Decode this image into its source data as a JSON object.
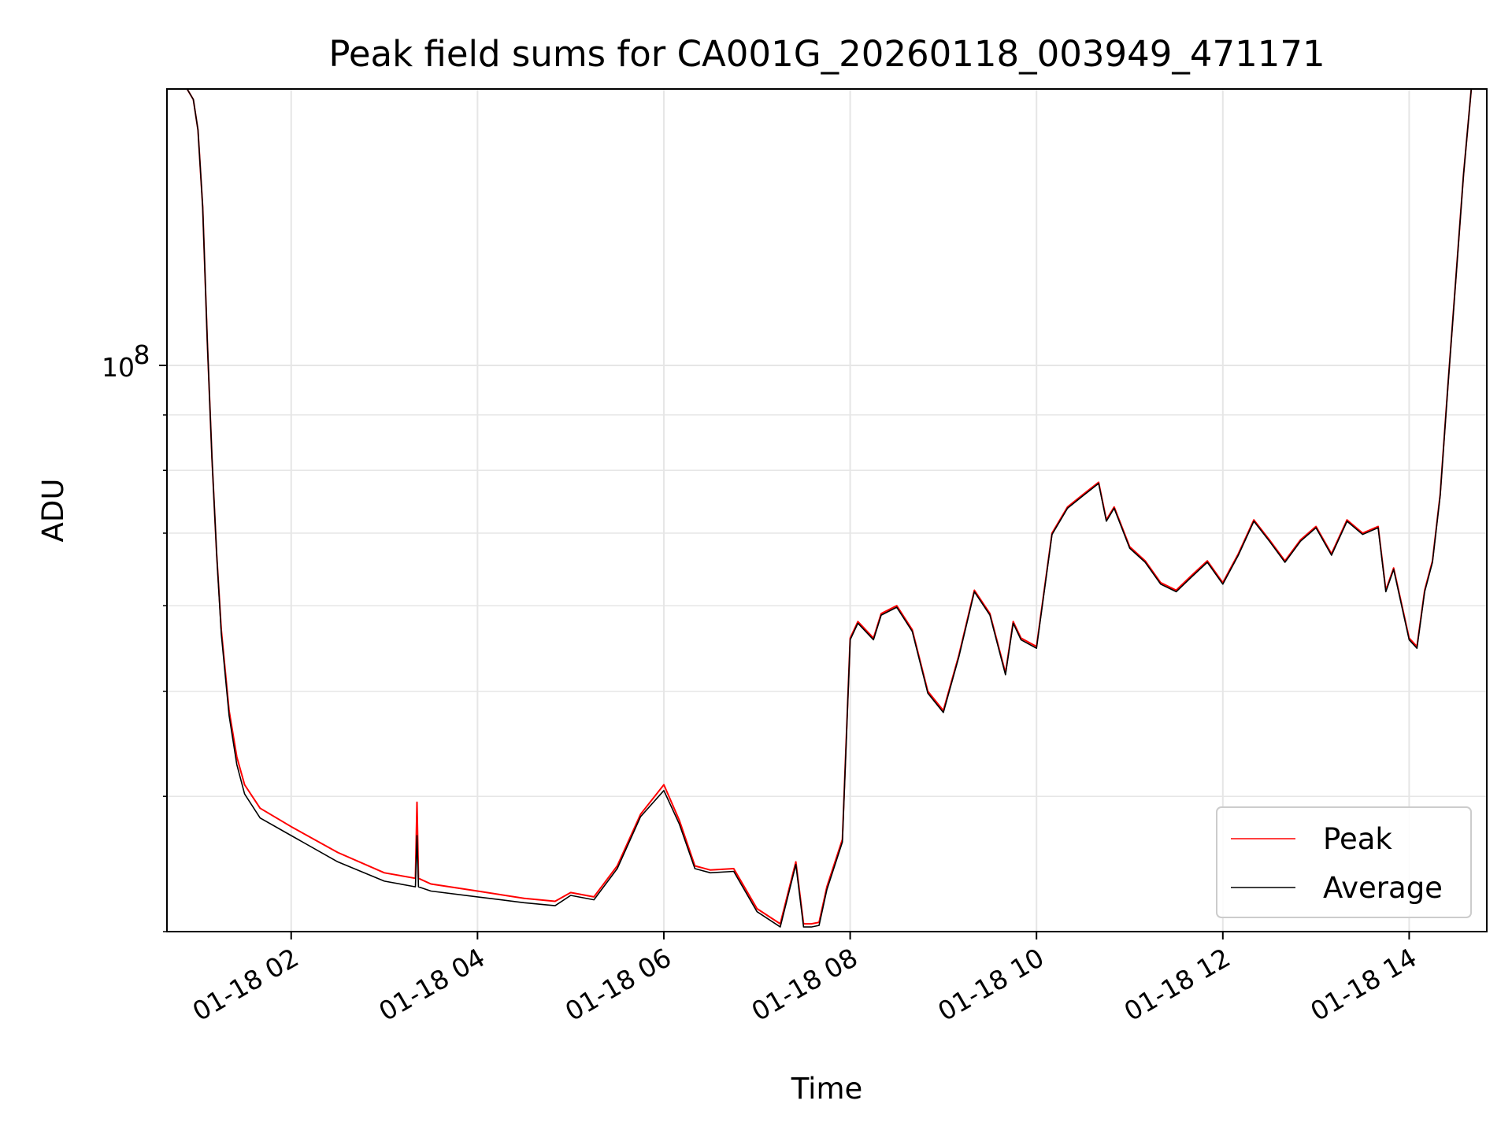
{
  "chart_data": {
    "type": "line",
    "title": "Peak field sums for CA001G_20260118_003949_471171",
    "xlabel": "Time",
    "ylabel": "ADU",
    "yscale": "log",
    "grid": true,
    "legend_position": "lower right",
    "x_tick_labels": [
      "01-18 02",
      "01-18 04",
      "01-18 06",
      "01-18 08",
      "01-18 10",
      "01-18 12",
      "01-18 14"
    ],
    "x_ticks": [
      "2026-01-18 02:00",
      "2026-01-18 04:00",
      "2026-01-18 06:00",
      "2026-01-18 08:00",
      "2026-01-18 10:00",
      "2026-01-18 12:00",
      "2026-01-18 14:00"
    ],
    "y_tick_labels": [
      {
        "base": "10",
        "exponent": "8"
      }
    ],
    "xlim": [
      "2026-01-18 00:40",
      "2026-01-18 14:50"
    ],
    "ylim": [
      30000000,
      180000000
    ],
    "series": [
      {
        "name": "Peak",
        "color": "#ff0000",
        "x": [
          "00:53",
          "00:57",
          "01:00",
          "01:03",
          "01:06",
          "01:09",
          "01:12",
          "01:15",
          "01:20",
          "01:25",
          "01:30",
          "01:40",
          "02:00",
          "02:30",
          "03:00",
          "03:20",
          "03:21",
          "03:22",
          "03:30",
          "04:00",
          "04:30",
          "04:50",
          "05:00",
          "05:15",
          "05:30",
          "05:45",
          "06:00",
          "06:10",
          "06:20",
          "06:30",
          "06:45",
          "07:00",
          "07:15",
          "07:25",
          "07:30",
          "07:35",
          "07:40",
          "07:45",
          "07:55",
          "08:00",
          "08:05",
          "08:15",
          "08:20",
          "08:30",
          "08:40",
          "08:50",
          "09:00",
          "09:10",
          "09:20",
          "09:30",
          "09:40",
          "09:45",
          "09:50",
          "10:00",
          "10:10",
          "10:20",
          "10:30",
          "10:40",
          "10:45",
          "10:50",
          "11:00",
          "11:10",
          "11:20",
          "11:30",
          "11:40",
          "11:50",
          "12:00",
          "12:10",
          "12:20",
          "12:30",
          "12:40",
          "12:50",
          "13:00",
          "13:10",
          "13:20",
          "13:30",
          "13:40",
          "13:45",
          "13:50",
          "14:00",
          "14:05",
          "14:10",
          "14:15",
          "14:20",
          "14:25",
          "14:30",
          "14:35",
          "14:40"
        ],
        "values": [
          180000000,
          176000000,
          165000000,
          140000000,
          105000000,
          82000000,
          67000000,
          57000000,
          48000000,
          43500000,
          41000000,
          39000000,
          37500000,
          35500000,
          34000000,
          33600000,
          39500000,
          33600000,
          33200000,
          32700000,
          32200000,
          32000000,
          32600000,
          32300000,
          34500000,
          38500000,
          41000000,
          38000000,
          34500000,
          34200000,
          34300000,
          31500000,
          30500000,
          34800000,
          30500000,
          30500000,
          30600000,
          33000000,
          36500000,
          56000000,
          58000000,
          56000000,
          59000000,
          60000000,
          57000000,
          50000000,
          48000000,
          54000000,
          62000000,
          59000000,
          52000000,
          58000000,
          56000000,
          55000000,
          70000000,
          74000000,
          76000000,
          78000000,
          72000000,
          74000000,
          68000000,
          66000000,
          63000000,
          62000000,
          64000000,
          66000000,
          63000000,
          67000000,
          72000000,
          69000000,
          66000000,
          69000000,
          71000000,
          67000000,
          72000000,
          70000000,
          71000000,
          62000000,
          65000000,
          56000000,
          55000000,
          62000000,
          66000000,
          76000000,
          96000000,
          120000000,
          150000000,
          180000000
        ]
      },
      {
        "name": "Average",
        "color": "#000000",
        "x": [
          "00:53",
          "00:57",
          "01:00",
          "01:03",
          "01:06",
          "01:09",
          "01:12",
          "01:15",
          "01:20",
          "01:25",
          "01:30",
          "01:40",
          "02:00",
          "02:30",
          "03:00",
          "03:20",
          "03:21",
          "03:22",
          "03:30",
          "04:00",
          "04:30",
          "04:50",
          "05:00",
          "05:15",
          "05:30",
          "05:45",
          "06:00",
          "06:10",
          "06:20",
          "06:30",
          "06:45",
          "07:00",
          "07:15",
          "07:25",
          "07:30",
          "07:35",
          "07:40",
          "07:45",
          "07:55",
          "08:00",
          "08:05",
          "08:15",
          "08:20",
          "08:30",
          "08:40",
          "08:50",
          "09:00",
          "09:10",
          "09:20",
          "09:30",
          "09:40",
          "09:45",
          "09:50",
          "10:00",
          "10:10",
          "10:20",
          "10:30",
          "10:40",
          "10:45",
          "10:50",
          "11:00",
          "11:10",
          "11:20",
          "11:30",
          "11:40",
          "11:50",
          "12:00",
          "12:10",
          "12:20",
          "12:30",
          "12:40",
          "12:50",
          "13:00",
          "13:10",
          "13:20",
          "13:30",
          "13:40",
          "13:45",
          "13:50",
          "14:00",
          "14:05",
          "14:10",
          "14:15",
          "14:20",
          "14:25",
          "14:30",
          "14:35",
          "14:40"
        ],
        "values": [
          180000000,
          176000000,
          165000000,
          140000000,
          105000000,
          82000000,
          67000000,
          56500000,
          47500000,
          42800000,
          40200000,
          38200000,
          36800000,
          34800000,
          33400000,
          33000000,
          36800000,
          33000000,
          32700000,
          32300000,
          31900000,
          31700000,
          32400000,
          32100000,
          34300000,
          38300000,
          40500000,
          37700000,
          34300000,
          34000000,
          34100000,
          31300000,
          30300000,
          34600000,
          30300000,
          30300000,
          30400000,
          32800000,
          36300000,
          55800000,
          57800000,
          55800000,
          58800000,
          59800000,
          56800000,
          49800000,
          47800000,
          53800000,
          61800000,
          58800000,
          51800000,
          57800000,
          55800000,
          54800000,
          69800000,
          73800000,
          75800000,
          77800000,
          71800000,
          73800000,
          67800000,
          65800000,
          62800000,
          61800000,
          63800000,
          65800000,
          62800000,
          66800000,
          71800000,
          68800000,
          65800000,
          68800000,
          70800000,
          66800000,
          71800000,
          69800000,
          70800000,
          61800000,
          64800000,
          55800000,
          54800000,
          61800000,
          65800000,
          75800000,
          95800000,
          119800000,
          149800000,
          180000000
        ]
      }
    ]
  }
}
